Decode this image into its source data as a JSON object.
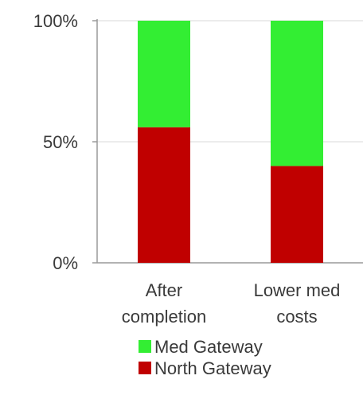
{
  "chart_data": {
    "type": "bar",
    "stacked": true,
    "percent": true,
    "categories": [
      [
        "After",
        "completion"
      ],
      [
        "Lower med",
        "costs"
      ]
    ],
    "series": [
      {
        "name": "North Gateway",
        "color": "#c00000",
        "values": [
          56,
          40
        ]
      },
      {
        "name": "Med Gateway",
        "color": "#33ee33",
        "values": [
          44,
          60
        ]
      }
    ],
    "ylim": [
      0,
      100
    ],
    "yticks": [
      {
        "value": 0,
        "label": "0%"
      },
      {
        "value": 50,
        "label": "50%"
      },
      {
        "value": 100,
        "label": "100%"
      }
    ],
    "grid": true,
    "legend_position": "bottom",
    "legend_order": [
      "Med Gateway",
      "North Gateway"
    ]
  }
}
